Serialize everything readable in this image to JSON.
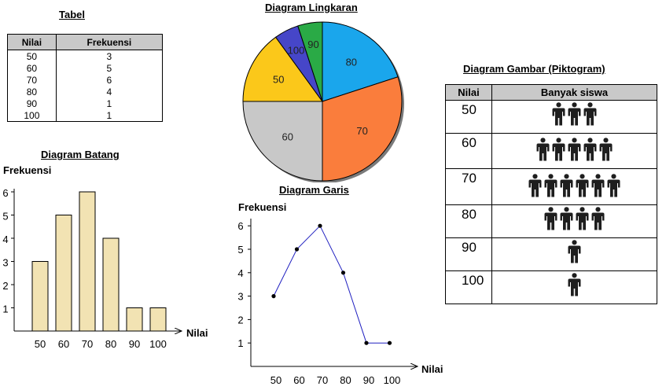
{
  "table": {
    "title": "Tabel",
    "col_value": "Nilai",
    "col_freq": "Frekuensi",
    "rows": [
      {
        "nilai": "50",
        "frekuensi": "3"
      },
      {
        "nilai": "60",
        "frekuensi": "5"
      },
      {
        "nilai": "70",
        "frekuensi": "6"
      },
      {
        "nilai": "80",
        "frekuensi": "4"
      },
      {
        "nilai": "90",
        "frekuensi": "1"
      },
      {
        "nilai": "100",
        "frekuensi": "1"
      }
    ]
  },
  "pictogram": {
    "title": "Diagram Gambar (Piktogram)",
    "col_value": "Nilai",
    "col_count": "Banyak siswa",
    "icon": "person-icon"
  },
  "chart_data": [
    {
      "type": "pie",
      "title": "Diagram Lingkaran",
      "labels": [
        "80",
        "70",
        "60",
        "50",
        "100",
        "90"
      ],
      "values": [
        4,
        6,
        5,
        3,
        1,
        1
      ],
      "colors": [
        "#1aa6ec",
        "#fa7d3c",
        "#c8c8c8",
        "#fbc81a",
        "#4646c8",
        "#2aaa46"
      ]
    },
    {
      "type": "bar",
      "title": "Diagram Batang",
      "categories": [
        "50",
        "60",
        "70",
        "80",
        "90",
        "100"
      ],
      "values": [
        3,
        5,
        6,
        4,
        1,
        1
      ],
      "ylabel": "Frekuensi",
      "xlabel": "Nilai",
      "yticks": [
        "1",
        "2",
        "3",
        "4",
        "5",
        "6"
      ],
      "ylim": [
        0,
        6
      ],
      "bar_color": "#f2e3b3"
    },
    {
      "type": "line",
      "title": "Diagram Garis",
      "categories": [
        "50",
        "60",
        "70",
        "80",
        "90",
        "100"
      ],
      "values": [
        3,
        5,
        6,
        4,
        1,
        1
      ],
      "ylabel": "Frekuensi",
      "xlabel": "Nilai",
      "yticks": [
        "1",
        "2",
        "3",
        "4",
        "5",
        "6"
      ],
      "ylim": [
        0,
        6
      ],
      "line_color": "#2020c0"
    }
  ]
}
